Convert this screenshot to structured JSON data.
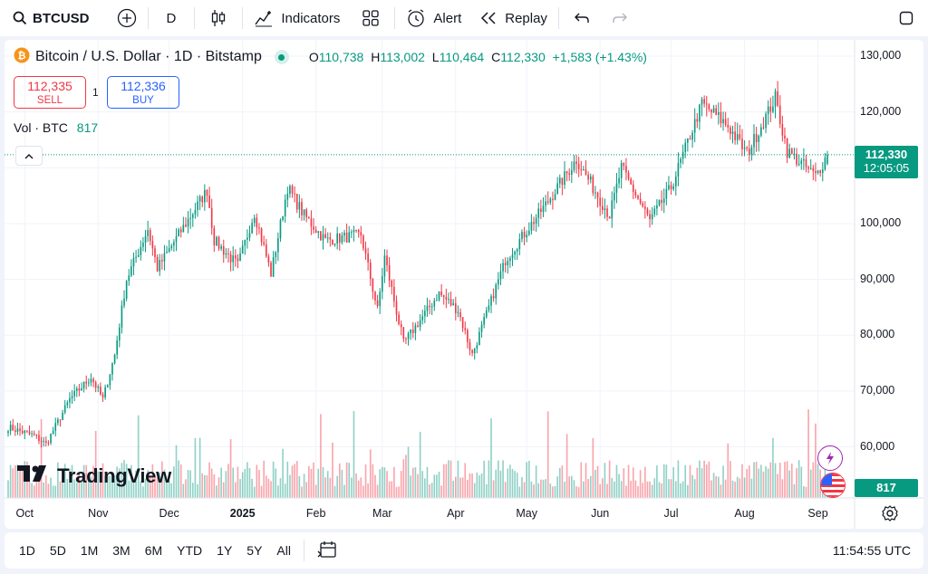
{
  "toolbar": {
    "symbol": "BTCUSD",
    "interval": "D",
    "indicators_label": "Indicators",
    "alert_label": "Alert",
    "replay_label": "Replay"
  },
  "legend": {
    "title": "Bitcoin / U.S. Dollar · 1D · Bitstamp",
    "open_label": "O",
    "open": "110,738",
    "high_label": "H",
    "high": "113,002",
    "low_label": "L",
    "low": "110,464",
    "close_label": "C",
    "close": "112,330",
    "change": "+1,583 (+1.43%)"
  },
  "trade": {
    "sell_price": "112,335",
    "sell_label": "SELL",
    "spread": "1",
    "buy_price": "112,336",
    "buy_label": "BUY"
  },
  "volume": {
    "label": "Vol · BTC",
    "value": "817"
  },
  "price_tag": {
    "price": "112,330",
    "countdown": "12:05:05"
  },
  "volume_tag": "817",
  "logo_text": "TradingView",
  "bottombar": {
    "ranges": [
      "1D",
      "5D",
      "1M",
      "3M",
      "6M",
      "YTD",
      "1Y",
      "5Y",
      "All"
    ],
    "time": "11:54:55 UTC"
  },
  "colors": {
    "up": "#089981",
    "down": "#f23645",
    "accent": "#2962ff"
  },
  "chart_data": {
    "type": "candlestick",
    "symbol": "BTCUSD",
    "interval": "1D",
    "y_ticks": [
      "130,000",
      "120,000",
      "110,000",
      "100,000",
      "90,000",
      "80,000",
      "70,000",
      "60,000"
    ],
    "ylim": [
      52000,
      132000
    ],
    "x_ticks": [
      "Oct",
      "Nov",
      "Dec",
      "2025",
      "Feb",
      "Mar",
      "Apr",
      "May",
      "Jun",
      "Jul",
      "Aug",
      "Sep"
    ],
    "anchor_closes": [
      [
        "2024-09-24",
        63500
      ],
      [
        "2024-10-05",
        62000
      ],
      [
        "2024-10-10",
        60500
      ],
      [
        "2024-10-20",
        68500
      ],
      [
        "2024-10-29",
        72500
      ],
      [
        "2024-11-03",
        68500
      ],
      [
        "2024-11-08",
        76500
      ],
      [
        "2024-11-13",
        90000
      ],
      [
        "2024-11-22",
        99000
      ],
      [
        "2024-11-26",
        92000
      ],
      [
        "2024-12-05",
        98000
      ],
      [
        "2024-12-17",
        106000
      ],
      [
        "2024-12-20",
        97000
      ],
      [
        "2024-12-30",
        92500
      ],
      [
        "2025-01-06",
        102000
      ],
      [
        "2025-01-13",
        91000
      ],
      [
        "2025-01-20",
        106500
      ],
      [
        "2025-01-27",
        101500
      ],
      [
        "2025-02-05",
        97000
      ],
      [
        "2025-02-20",
        98000
      ],
      [
        "2025-02-27",
        84500
      ],
      [
        "2025-03-02",
        94000
      ],
      [
        "2025-03-10",
        78500
      ],
      [
        "2025-03-25",
        87500
      ],
      [
        "2025-04-02",
        84500
      ],
      [
        "2025-04-08",
        76500
      ],
      [
        "2025-04-22",
        93500
      ],
      [
        "2025-05-10",
        104000
      ],
      [
        "2025-05-22",
        111500
      ],
      [
        "2025-06-05",
        101500
      ],
      [
        "2025-06-10",
        110000
      ],
      [
        "2025-06-22",
        100500
      ],
      [
        "2025-07-01",
        106500
      ],
      [
        "2025-07-14",
        121500
      ],
      [
        "2025-07-25",
        117500
      ],
      [
        "2025-08-02",
        112500
      ],
      [
        "2025-08-14",
        122500
      ],
      [
        "2025-08-19",
        113000
      ],
      [
        "2025-08-31",
        108500
      ],
      [
        "2025-09-05",
        112330
      ]
    ],
    "last": {
      "open": 110738,
      "high": 113002,
      "low": 110464,
      "close": 112330,
      "change": 1583,
      "change_pct": 1.43
    },
    "volume_last": 817
  }
}
